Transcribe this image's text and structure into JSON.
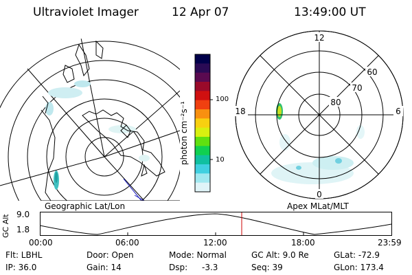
{
  "header": {
    "instrument": "Ultraviolet Imager",
    "date": "12 Apr 07",
    "time": "13:49:00 UT"
  },
  "left_map": {
    "label": "Geographic Lat/Lon"
  },
  "right_map": {
    "label": "Apex MLat/MLT",
    "mlt_labels": [
      "12",
      "18",
      "6",
      "0"
    ],
    "mlat_labels": [
      "60",
      "70",
      "80"
    ]
  },
  "colorbar": {
    "unit_label": "photon cm⁻²s⁻¹",
    "tick_labels": [
      "100",
      "10"
    ],
    "colors": [
      "#00004a",
      "#2a0a55",
      "#5a0a50",
      "#9a0a2a",
      "#d01010",
      "#f04010",
      "#f89010",
      "#f8d010",
      "#d8f010",
      "#60e010",
      "#10d050",
      "#10c0a0",
      "#40d0e0",
      "#a0e8f0",
      "#e0f4f8"
    ]
  },
  "altitude_plot": {
    "ylabel": "GC Alt",
    "y_ticks": [
      "9.0",
      "1.8"
    ],
    "x_ticks": [
      "00:00",
      "06:00",
      "12:00",
      "18:00",
      "23:59"
    ],
    "current_time_marker_color": "#cc0000"
  },
  "info": {
    "filter": "Flt: LBHL",
    "ip": "IP: 36.0",
    "door": "Door: Open",
    "gain": "Gain: 14",
    "mode": "Mode: Normal",
    "dsp_label": "Dsp:",
    "dsp_value": "-3.3",
    "gc_alt": "GC Alt: 9.0 Re",
    "seq": "Seq: 39",
    "glat": "GLat: -72.9",
    "glon": "GLon: 173.4"
  }
}
